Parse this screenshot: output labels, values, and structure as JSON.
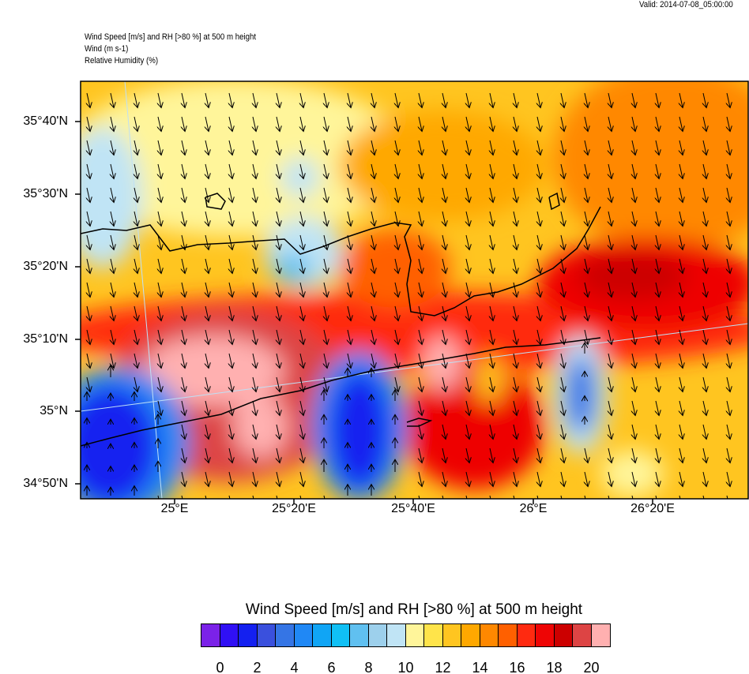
{
  "valid_time": "Valid: 2014-07-08_05:00:00",
  "header": {
    "line1": "Wind Speed [m/s] and RH [>80 %] at 500 m height",
    "line2": "Wind   (m s-1)",
    "line3": "Relative Humidity   (%)"
  },
  "map": {
    "lat_ticks": [
      "35°40'N",
      "35°30'N",
      "35°20'N",
      "35°10'N",
      "35°N",
      "34°50'N"
    ],
    "lon_ticks": [
      "25°E",
      "25°20'E",
      "25°40'E",
      "26°E",
      "26°20'E"
    ],
    "wind_direction": "mostly north-westerly (arrows toward south-southeast); southerly in low-speed blue zones"
  },
  "colorbar": {
    "title": "Wind Speed [m/s] and RH [>80 %] at 500 m height",
    "labels": [
      "0",
      "2",
      "4",
      "6",
      "8",
      "10",
      "12",
      "14",
      "16",
      "18",
      "20"
    ],
    "colors": [
      "#7B22E8",
      "#3010F5",
      "#1420F0",
      "#3A50DD",
      "#3575E5",
      "#2088F5",
      "#10A5F5",
      "#10C0F5",
      "#60C0F0",
      "#9DD0EC",
      "#C0E4F5",
      "#FFF59A",
      "#FFE44A",
      "#FFC520",
      "#FFA800",
      "#FF8800",
      "#FF6000",
      "#FF2A10",
      "#EE0505",
      "#CC0000",
      "#DD4444",
      "#FFB0B0"
    ]
  }
}
